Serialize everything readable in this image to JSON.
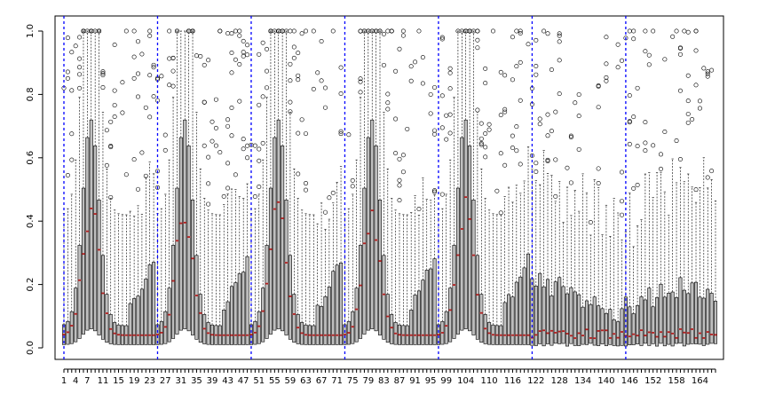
{
  "chart_data": {
    "type": "boxplot",
    "title": "",
    "xlabel": "",
    "ylabel": "",
    "ylim": [
      0,
      1
    ],
    "y_ticks": [
      "0.0",
      "0.2",
      "0.4",
      "0.6",
      "0.8",
      "1.0"
    ],
    "x_positions": {
      "first": 1,
      "last": 168
    },
    "x_tick_labels": [
      "1",
      "4",
      "7",
      "11",
      "15",
      "19",
      "23",
      "27",
      "31",
      "35",
      "39",
      "43",
      "47",
      "51",
      "55",
      "59",
      "63",
      "67",
      "71",
      "75",
      "79",
      "83",
      "87",
      "91",
      "95",
      "99",
      "104",
      "110",
      "116",
      "122",
      "128",
      "134",
      "140",
      "146",
      "152",
      "158",
      "164"
    ],
    "vertical_reference_lines": [
      1,
      25,
      49,
      73,
      97,
      121,
      145
    ],
    "series_summary": {
      "pattern": "24-position cycles repeating 5 times (positions 1-120) with peaks mid-cycle, then flatter behavior for positions 121-168",
      "median_peak_approx": 0.45,
      "upper_quartile_peak_approx": 0.72
    },
    "colors": {
      "box_fill": "#bebebe",
      "box_stroke": "#000000",
      "median": "#b22222",
      "reference_line": "#0000ff",
      "outlier": "#000000"
    },
    "grid": false,
    "legend": "none"
  }
}
